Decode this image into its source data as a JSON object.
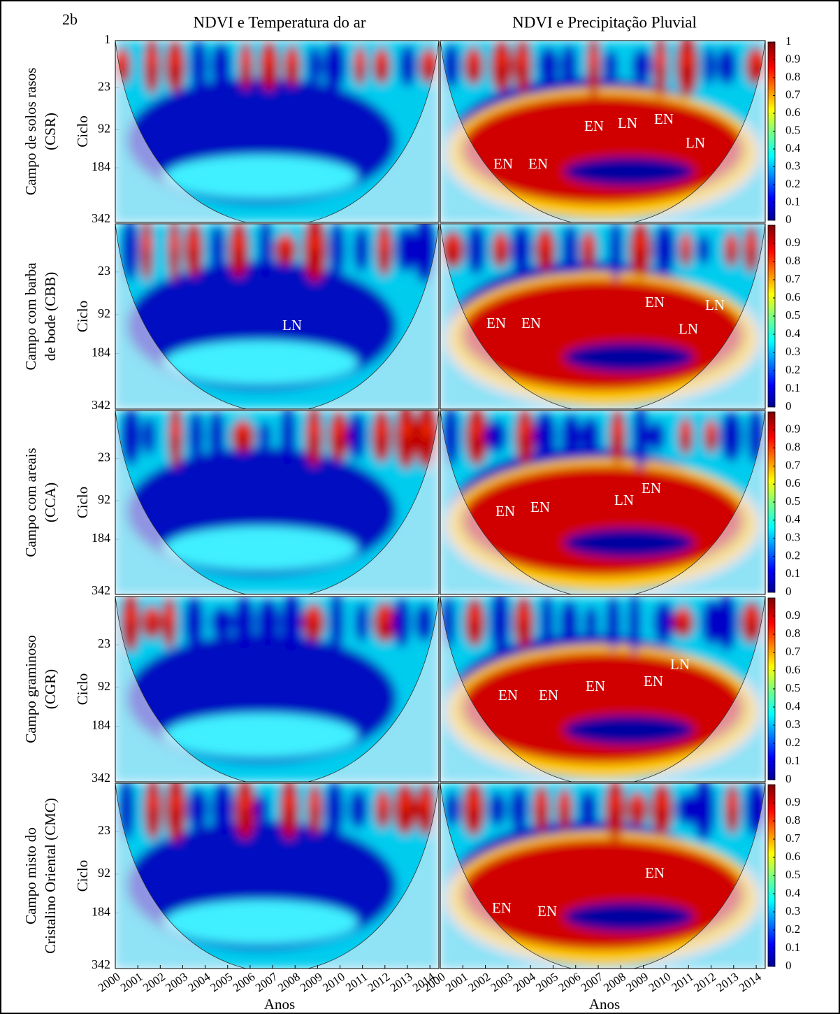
{
  "panel_label": "2b",
  "columns": [
    "NDVI e Temperatura do ar",
    "NDVI e Precipitação Pluvial"
  ],
  "x_axis_label": "Anos",
  "y_axis_label": "Ciclo",
  "xticks": [
    2000,
    2001,
    2002,
    2003,
    2004,
    2005,
    2006,
    2007,
    2008,
    2009,
    2010,
    2011,
    2012,
    2013,
    2014
  ],
  "xlim": [
    2000,
    2014.4
  ],
  "clim": [
    0,
    1
  ],
  "rows": [
    {
      "label": [
        "Campo de solos rasos",
        "(CSR)"
      ],
      "yticks": [
        1,
        23,
        92,
        184,
        342
      ],
      "colorbar_ticks": [
        0,
        0.1,
        0.2,
        0.3,
        0.4,
        0.5,
        0.6,
        0.7,
        0.8,
        0.9,
        1
      ],
      "annotations": [
        [],
        [
          "EN",
          "EN",
          "EN",
          "LN",
          "EN",
          "LN"
        ]
      ]
    },
    {
      "label": [
        "Campo com barba",
        "de bode (CBB)"
      ],
      "yticks": [
        23,
        92,
        184,
        342
      ],
      "colorbar_ticks": [
        0,
        0.1,
        0.2,
        0.3,
        0.4,
        0.5,
        0.6,
        0.7,
        0.8,
        0.9
      ],
      "annotations": [
        [
          "LN"
        ],
        [
          "EN",
          "EN",
          "EN",
          "LN",
          "LN"
        ]
      ]
    },
    {
      "label": [
        "Campo com areais",
        "(CCA)"
      ],
      "yticks": [
        23,
        92,
        184,
        342
      ],
      "colorbar_ticks": [
        0,
        0.1,
        0.2,
        0.3,
        0.4,
        0.5,
        0.6,
        0.7,
        0.8,
        0.9
      ],
      "annotations": [
        [],
        [
          "EN",
          "EN",
          "LN",
          "EN"
        ]
      ]
    },
    {
      "label": [
        "Campo graminoso",
        "(CGR)"
      ],
      "yticks": [
        23,
        92,
        184,
        342
      ],
      "colorbar_ticks": [
        0,
        0.1,
        0.2,
        0.3,
        0.4,
        0.5,
        0.6,
        0.7,
        0.8,
        0.9
      ],
      "annotations": [
        [],
        [
          "EN",
          "EN",
          "EN",
          "EN",
          "LN"
        ]
      ]
    },
    {
      "label": [
        "Campo misto do",
        "Cristalino Oriental (CMC)"
      ],
      "yticks": [
        23,
        92,
        184,
        342
      ],
      "colorbar_ticks": [
        0,
        0.1,
        0.2,
        0.3,
        0.4,
        0.5,
        0.6,
        0.7,
        0.8,
        0.9
      ],
      "annotations": [
        [],
        [
          "EN",
          "EN",
          "EN"
        ]
      ]
    }
  ]
}
